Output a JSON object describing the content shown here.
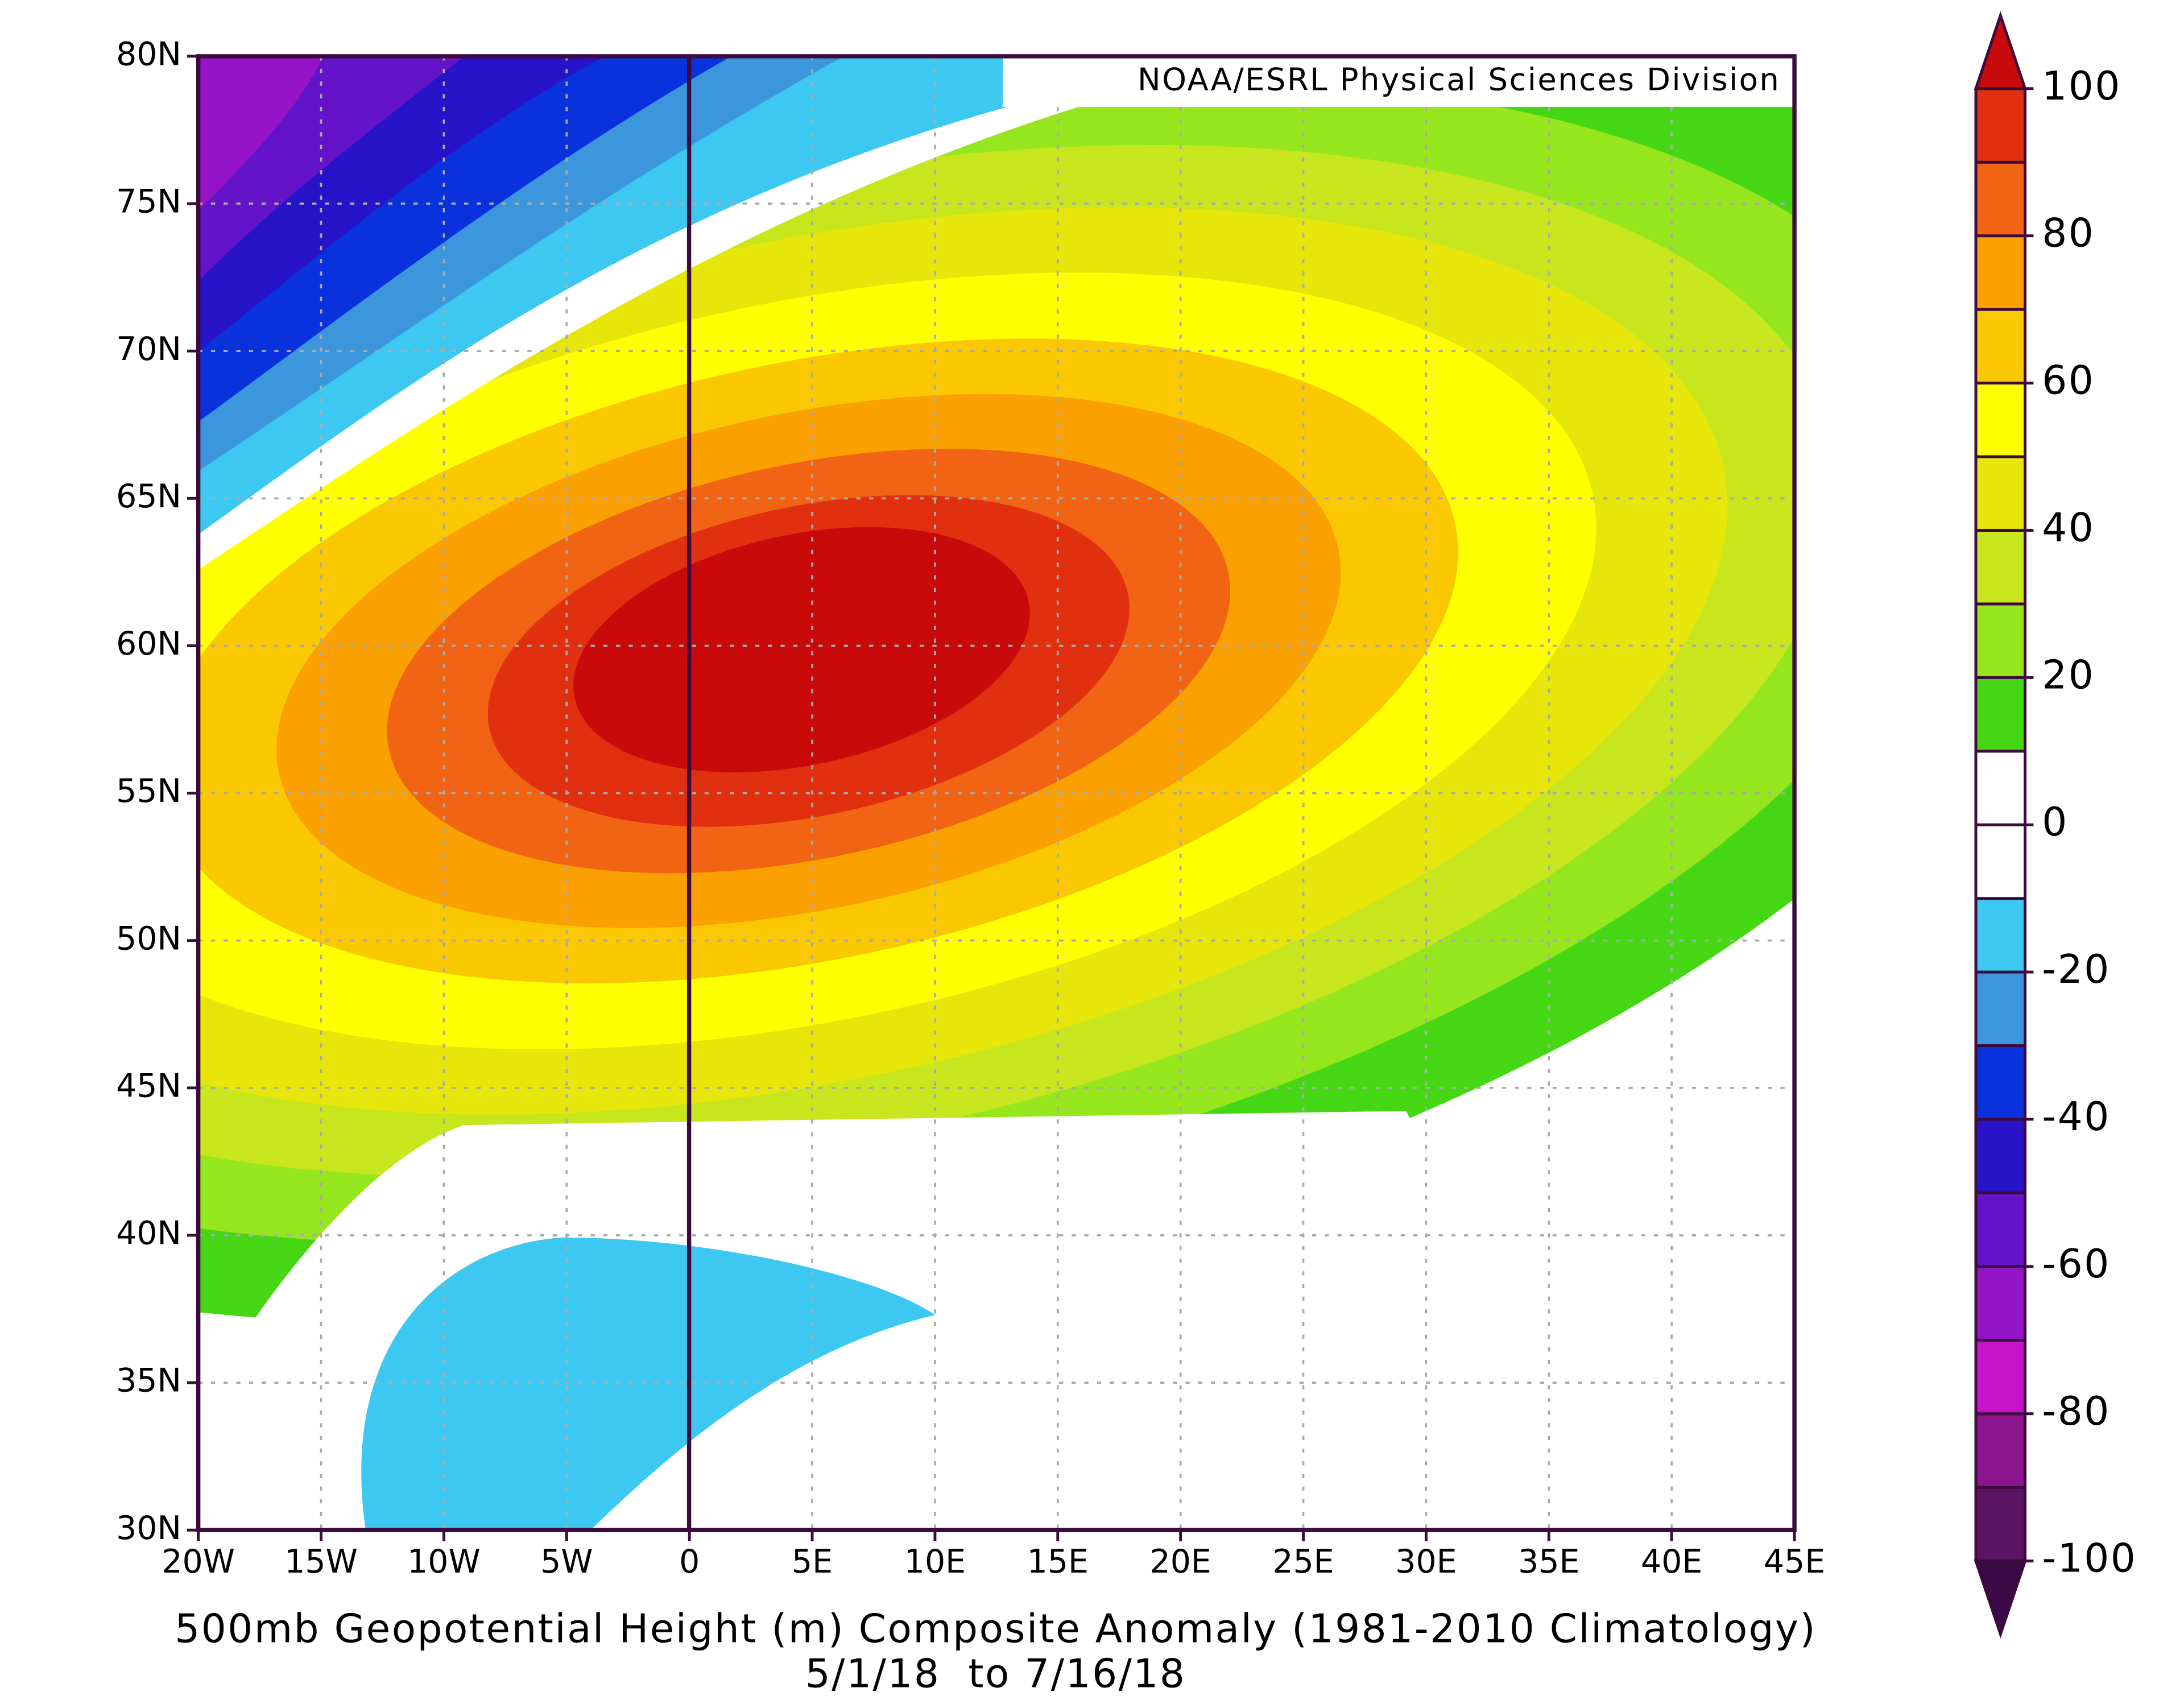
{
  "chart_data": {
    "type": "contour",
    "title": "500mb Geopotential Height (m) Composite Anomaly (1981-2010 Climatology)",
    "subtitle": "5/1/18  to 7/16/18",
    "credit": "NOAA/ESRL Physical Sciences Division",
    "xlim": [
      -20,
      45
    ],
    "ylim": [
      30,
      80
    ],
    "xticks": [
      {
        "value": -20,
        "label": "20W"
      },
      {
        "value": -15,
        "label": "15W"
      },
      {
        "value": -10,
        "label": "10W"
      },
      {
        "value": -5,
        "label": "5W"
      },
      0,
      {
        "value": 5,
        "label": "5E"
      },
      {
        "value": 10,
        "label": "10E"
      },
      {
        "value": 15,
        "label": "15E"
      },
      {
        "value": 20,
        "label": "20E"
      },
      {
        "value": 25,
        "label": "25E"
      },
      {
        "value": 30,
        "label": "30E"
      },
      {
        "value": 35,
        "label": "35E"
      },
      {
        "value": 40,
        "label": "40E"
      },
      {
        "value": 45,
        "label": "45E"
      }
    ],
    "yticks": [
      {
        "value": 30,
        "label": "30N"
      },
      {
        "value": 35,
        "label": "35N"
      },
      {
        "value": 40,
        "label": "40N"
      },
      {
        "value": 45,
        "label": "45N"
      },
      {
        "value": 50,
        "label": "50N"
      },
      {
        "value": 55,
        "label": "55N"
      },
      {
        "value": 60,
        "label": "60N"
      },
      {
        "value": 65,
        "label": "65N"
      },
      {
        "value": 70,
        "label": "70N"
      },
      {
        "value": 75,
        "label": "75N"
      },
      {
        "value": 80,
        "label": "80N"
      }
    ],
    "grid": true,
    "colorbar": {
      "levels": [
        -100,
        -90,
        -80,
        -70,
        -60,
        -50,
        -40,
        -30,
        -20,
        -10,
        0,
        10,
        20,
        30,
        40,
        50,
        60,
        70,
        80,
        90,
        100
      ],
      "colors": [
        "#5a1464",
        "#8c148c",
        "#c814c8",
        "#9614c8",
        "#6414c8",
        "#2814c8",
        "#0a32dc",
        "#3c96dc",
        "#3cc8f0",
        "#ffffff",
        "#ffffff",
        "#46d714",
        "#96e61e",
        "#c8e61e",
        "#e6e60a",
        "#ffff00",
        "#fac800",
        "#faa000",
        "#f06414",
        "#e03010"
      ],
      "under_color": "#3c0a46",
      "over_color": "#c80a0a",
      "ticks": [
        -100,
        -80,
        -60,
        -40,
        -20,
        0,
        20,
        40,
        60,
        80,
        100
      ]
    }
  }
}
